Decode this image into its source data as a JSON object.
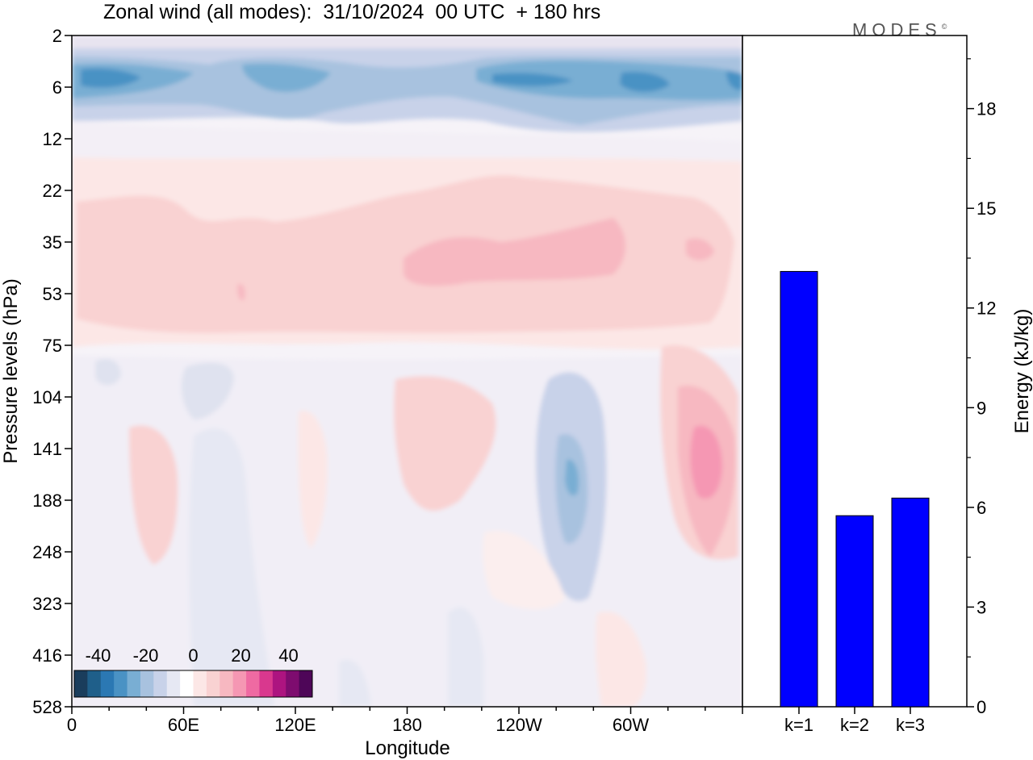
{
  "brand": {
    "text": "MODES",
    "mark": "©"
  },
  "chart_data": [
    {
      "type": "heatmap",
      "title": "Zonal wind (all modes):  31/10/2024  00 UTC  + 180 hrs",
      "xlabel": "Longitude",
      "ylabel": "Pressure levels (hPa)",
      "x_ticks": [
        "0",
        "60E",
        "120E",
        "180",
        "120W",
        "60W"
      ],
      "y_ticks": [
        "2",
        "6",
        "12",
        "22",
        "35",
        "53",
        "75",
        "104",
        "141",
        "188",
        "248",
        "323",
        "416",
        "528"
      ],
      "colorbar": {
        "labels": [
          "-40",
          "-20",
          "0",
          "20",
          "40"
        ],
        "range": [
          -50,
          50
        ],
        "colors": [
          "#1a3d5c",
          "#1f5f8a",
          "#2b78b3",
          "#4a92c4",
          "#79aed3",
          "#a8c2df",
          "#c8d2e9",
          "#e6e8f3",
          "#ffffff",
          "#fce7e6",
          "#f9d2d2",
          "#f7b8c1",
          "#f597b3",
          "#ef6aa2",
          "#d9388e",
          "#ad1480",
          "#7e0c6f",
          "#4e0658"
        ]
      },
      "grid": false
    },
    {
      "type": "bar",
      "categories": [
        "k=1",
        "k=2",
        "k=3"
      ],
      "values": [
        13.1,
        5.75,
        6.28
      ],
      "ylabel": "Energy (kJ/kg)",
      "ylim": [
        0,
        20.2
      ],
      "y_ticks": [
        0,
        3,
        6,
        9,
        12,
        15,
        18
      ],
      "bar_color": "#0000ff"
    }
  ]
}
